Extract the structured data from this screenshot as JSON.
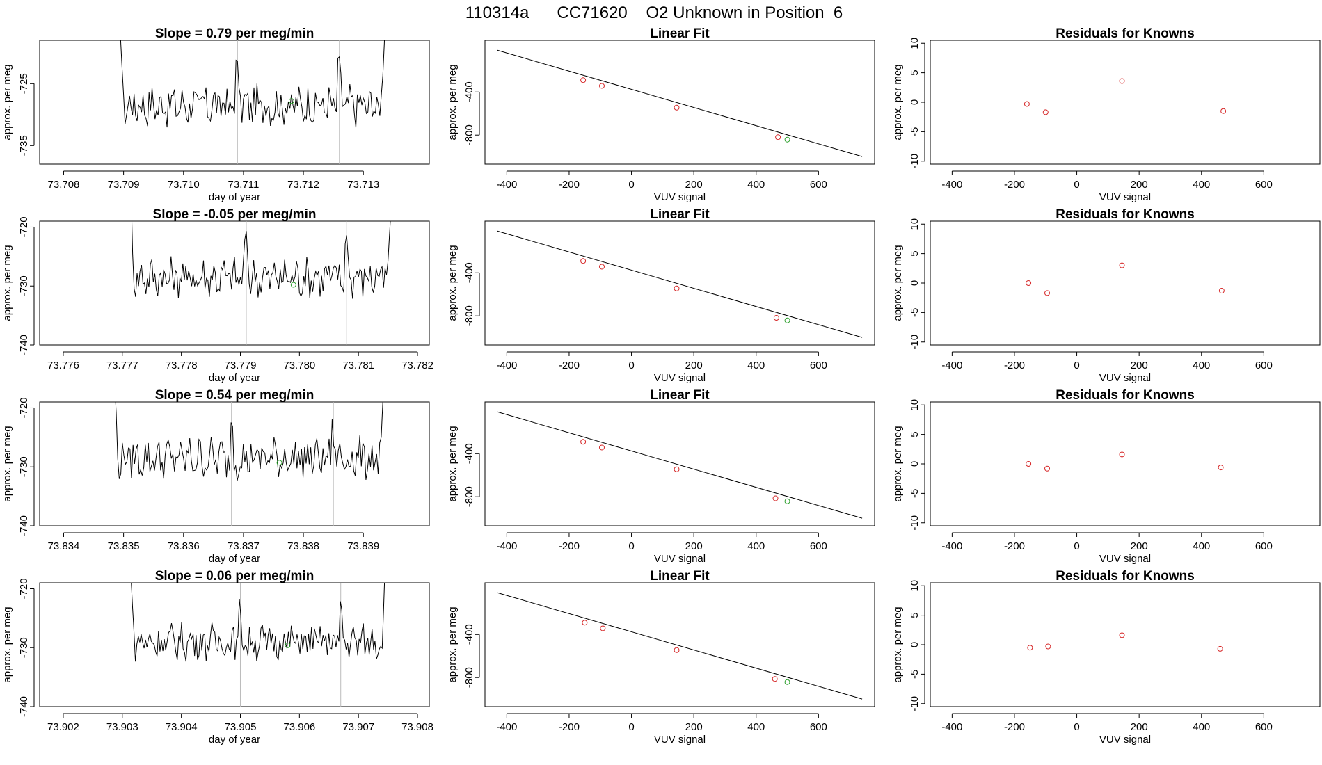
{
  "figure_title": "110314a      CC71620    O2 Unknown in Position  6",
  "colors": {
    "known": "#d62728",
    "unknown": "#2ca02c",
    "line": "#000000",
    "vline": "#bbbbbb"
  },
  "chart_data": [
    {
      "row": 1,
      "time_panel": {
        "type": "line",
        "title": "Slope =  0.79  per meg/min",
        "xlabel": "day of year",
        "ylabel": "approx. per meg",
        "xlim": [
          73.7076,
          73.7141
        ],
        "ylim": [
          -738,
          -718
        ],
        "xticks": [
          "73.708",
          "73.709",
          "73.710",
          "73.711",
          "73.712",
          "73.713"
        ],
        "yticks": [
          "-725",
          "-735"
        ],
        "start": 73.7089,
        "end": 73.7134,
        "level": -728.5,
        "amp": 2.7,
        "vlines": [
          73.7109,
          73.7126
        ],
        "unknown_point": [
          73.7118,
          -727.8
        ]
      },
      "fit_panel": {
        "type": "scatter",
        "title": "Linear Fit",
        "xlabel": "VUV signal",
        "ylabel": "approx. per meg",
        "xlim": [
          -470,
          780
        ],
        "ylim": [
          -1070,
          80
        ],
        "xticks": [
          "-400",
          "-200",
          "0",
          "200",
          "400",
          "600"
        ],
        "yticks": [
          "-400",
          "-800"
        ],
        "line": {
          "x": [
            -430,
            740
          ],
          "y": [
            -12,
            -1000
          ]
        },
        "known_points": [
          [
            -155,
            -290
          ],
          [
            -95,
            -343
          ],
          [
            145,
            -545
          ],
          [
            470,
            -820
          ]
        ],
        "unknown_point": [
          500,
          -842
        ]
      },
      "residual_panel": {
        "type": "scatter",
        "title": "Residuals for Knowns",
        "xlabel": "VUV signal",
        "ylabel": "approx. per meg",
        "xlim": [
          -470,
          780
        ],
        "ylim": [
          -10.5,
          10.5
        ],
        "xticks": [
          "-400",
          "-200",
          "0",
          "200",
          "400",
          "600"
        ],
        "yticks": [
          "10",
          "5",
          "0",
          "-5",
          "-10"
        ],
        "known_points": [
          [
            -160,
            -0.3
          ],
          [
            -100,
            -1.7
          ],
          [
            145,
            3.6
          ],
          [
            470,
            -1.5
          ]
        ]
      }
    },
    {
      "row": 2,
      "time_panel": {
        "type": "line",
        "title": "Slope =  -0.05  per meg/min",
        "xlabel": "day of year",
        "ylabel": "approx. per meg",
        "xlim": [
          73.7756,
          73.7822
        ],
        "ylim": [
          -740,
          -719
        ],
        "xticks": [
          "73.776",
          "73.777",
          "73.778",
          "73.779",
          "73.780",
          "73.781",
          "73.782"
        ],
        "yticks": [
          "-720",
          "-730",
          "-740"
        ],
        "start": 73.7771,
        "end": 73.7816,
        "level": -728.5,
        "amp": 2.8,
        "vlines": [
          73.7791,
          73.7808
        ],
        "unknown_point": [
          73.7799,
          -729.8
        ]
      },
      "fit_panel": {
        "type": "scatter",
        "title": "Linear Fit",
        "xlabel": "VUV signal",
        "ylabel": "approx. per meg",
        "xlim": [
          -470,
          780
        ],
        "ylim": [
          -1070,
          80
        ],
        "xticks": [
          "-400",
          "-200",
          "0",
          "200",
          "400",
          "600"
        ],
        "yticks": [
          "-400",
          "-800"
        ],
        "line": {
          "x": [
            -430,
            740
          ],
          "y": [
            -12,
            -1000
          ]
        },
        "known_points": [
          [
            -155,
            -290
          ],
          [
            -95,
            -343
          ],
          [
            145,
            -545
          ],
          [
            465,
            -818
          ]
        ],
        "unknown_point": [
          500,
          -842
        ]
      },
      "residual_panel": {
        "type": "scatter",
        "title": "Residuals for Knowns",
        "xlabel": "VUV signal",
        "ylabel": "approx. per meg",
        "xlim": [
          -470,
          780
        ],
        "ylim": [
          -10.5,
          10.5
        ],
        "xticks": [
          "-400",
          "-200",
          "0",
          "200",
          "400",
          "600"
        ],
        "yticks": [
          "10",
          "5",
          "0",
          "-5",
          "-10"
        ],
        "known_points": [
          [
            -155,
            0.0
          ],
          [
            -95,
            -1.7
          ],
          [
            145,
            3.0
          ],
          [
            465,
            -1.3
          ]
        ]
      }
    },
    {
      "row": 3,
      "time_panel": {
        "type": "line",
        "title": "Slope =  0.54  per meg/min",
        "xlabel": "day of year",
        "ylabel": "approx. per meg",
        "xlim": [
          73.8336,
          73.8401
        ],
        "ylim": [
          -740,
          -719
        ],
        "xticks": [
          "73.834",
          "73.835",
          "73.836",
          "73.837",
          "73.838",
          "73.839"
        ],
        "yticks": [
          "-720",
          "-730",
          "-740"
        ],
        "start": 73.8348,
        "end": 73.8394,
        "level": -728.5,
        "amp": 2.8,
        "vlines": [
          73.8368,
          73.8385
        ],
        "unknown_point": [
          73.8376,
          -729.3
        ]
      },
      "fit_panel": {
        "type": "scatter",
        "title": "Linear Fit",
        "xlabel": "VUV signal",
        "ylabel": "approx. per meg",
        "xlim": [
          -470,
          780
        ],
        "ylim": [
          -1070,
          80
        ],
        "xticks": [
          "-400",
          "-200",
          "0",
          "200",
          "400",
          "600"
        ],
        "yticks": [
          "-400",
          "-800"
        ],
        "line": {
          "x": [
            -430,
            740
          ],
          "y": [
            -12,
            -1000
          ]
        },
        "known_points": [
          [
            -155,
            -290
          ],
          [
            -95,
            -343
          ],
          [
            145,
            -545
          ],
          [
            462,
            -815
          ]
        ],
        "unknown_point": [
          500,
          -842
        ]
      },
      "residual_panel": {
        "type": "scatter",
        "title": "Residuals for Knowns",
        "xlabel": "VUV signal",
        "ylabel": "approx. per meg",
        "xlim": [
          -470,
          780
        ],
        "ylim": [
          -10.5,
          10.5
        ],
        "xticks": [
          "-400",
          "-200",
          "0",
          "200",
          "400",
          "600"
        ],
        "yticks": [
          "10",
          "5",
          "0",
          "-5",
          "-10"
        ],
        "known_points": [
          [
            -155,
            0.0
          ],
          [
            -95,
            -0.8
          ],
          [
            145,
            1.6
          ],
          [
            462,
            -0.6
          ]
        ]
      }
    },
    {
      "row": 4,
      "time_panel": {
        "type": "line",
        "title": "Slope =  0.06  per meg/min",
        "xlabel": "day of year",
        "ylabel": "approx. per meg",
        "xlim": [
          73.9016,
          73.9082
        ],
        "ylim": [
          -740,
          -719
        ],
        "xticks": [
          "73.902",
          "73.903",
          "73.904",
          "73.905",
          "73.906",
          "73.907",
          "73.908"
        ],
        "yticks": [
          "-720",
          "-730",
          "-740"
        ],
        "start": 73.9031,
        "end": 73.9075,
        "level": -729.0,
        "amp": 2.5,
        "vlines": [
          73.905,
          73.9067
        ],
        "unknown_point": [
          73.9058,
          -729.6
        ]
      },
      "fit_panel": {
        "type": "scatter",
        "title": "Linear Fit",
        "xlabel": "VUV signal",
        "ylabel": "approx. per meg",
        "xlim": [
          -470,
          780
        ],
        "ylim": [
          -1070,
          80
        ],
        "xticks": [
          "-400",
          "-200",
          "0",
          "200",
          "400",
          "600"
        ],
        "yticks": [
          "-400",
          "-800"
        ],
        "line": {
          "x": [
            -430,
            740
          ],
          "y": [
            -12,
            -1000
          ]
        },
        "known_points": [
          [
            -150,
            -290
          ],
          [
            -92,
            -343
          ],
          [
            145,
            -545
          ],
          [
            460,
            -813
          ]
        ],
        "unknown_point": [
          500,
          -842
        ]
      },
      "residual_panel": {
        "type": "scatter",
        "title": "Residuals for Knowns",
        "xlabel": "VUV signal",
        "ylabel": "approx. per meg",
        "xlim": [
          -470,
          780
        ],
        "ylim": [
          -10.5,
          10.5
        ],
        "xticks": [
          "-400",
          "-200",
          "0",
          "200",
          "400",
          "600"
        ],
        "yticks": [
          "10",
          "5",
          "0",
          "-5",
          "-10"
        ],
        "known_points": [
          [
            -150,
            -0.5
          ],
          [
            -92,
            -0.3
          ],
          [
            145,
            1.6
          ],
          [
            460,
            -0.7
          ]
        ]
      }
    }
  ]
}
